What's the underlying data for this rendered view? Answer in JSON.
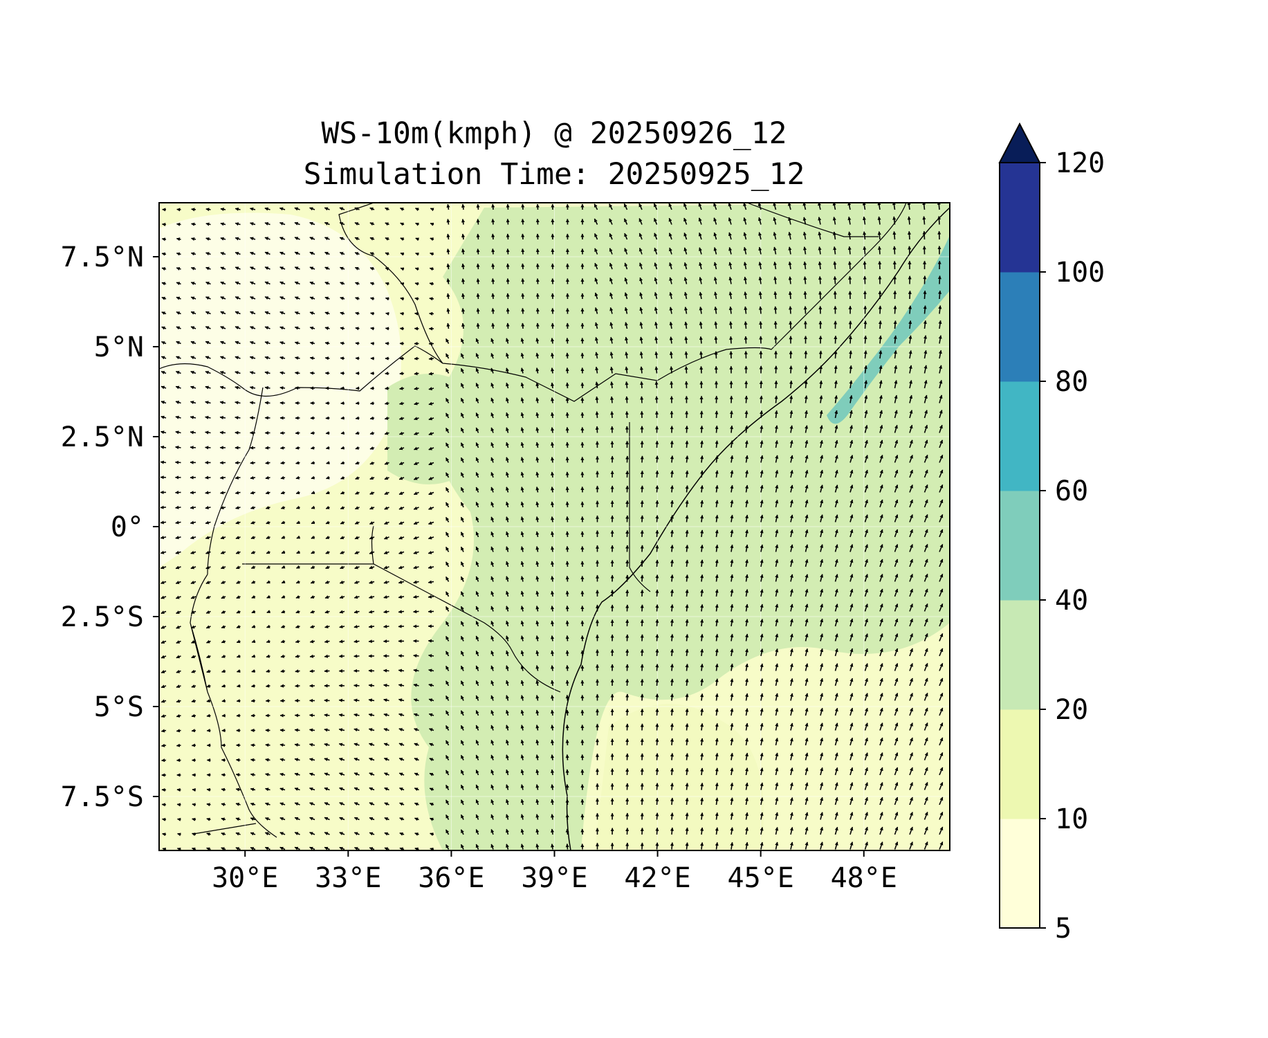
{
  "title_line1": "WS-10m(kmph) @ 20250926_12",
  "title_line2": "Simulation Time: 20250925_12",
  "map": {
    "lon_range": [
      27.5,
      50.5
    ],
    "lat_range": [
      -9.0,
      9.0
    ],
    "lon_ticks": [
      {
        "value": 30,
        "label": "30°E"
      },
      {
        "value": 33,
        "label": "33°E"
      },
      {
        "value": 36,
        "label": "36°E"
      },
      {
        "value": 39,
        "label": "39°E"
      },
      {
        "value": 42,
        "label": "42°E"
      },
      {
        "value": 45,
        "label": "45°E"
      },
      {
        "value": 48,
        "label": "48°E"
      }
    ],
    "lat_ticks": [
      {
        "value": 7.5,
        "label": "7.5°N"
      },
      {
        "value": 5,
        "label": "5°N"
      },
      {
        "value": 2.5,
        "label": "2.5°N"
      },
      {
        "value": 0,
        "label": "0°"
      },
      {
        "value": -2.5,
        "label": "2.5°S"
      },
      {
        "value": -5,
        "label": "5°S"
      },
      {
        "value": -7.5,
        "label": "7.5°S"
      }
    ],
    "background_colors": {
      "land_light": "#f7fcc8",
      "sea_green": "#d3edb3",
      "band_teal": "#7fcdbb"
    },
    "vector_field": "wind arrows"
  },
  "colorbar": {
    "levels": [
      {
        "value": 5,
        "label": "5",
        "color": "#ffffd9"
      },
      {
        "value": 10,
        "label": "10",
        "color": "#edf8b1"
      },
      {
        "value": 20,
        "label": "20",
        "color": "#c7e9b4"
      },
      {
        "value": 40,
        "label": "40",
        "color": "#7fcdbb"
      },
      {
        "value": 60,
        "label": "60",
        "color": "#41b6c4"
      },
      {
        "value": 80,
        "label": "80",
        "color": "#2c7fb8"
      },
      {
        "value": 100,
        "label": "100",
        "color": "#253494"
      },
      {
        "value": 120,
        "label": "120",
        "color": "#081d58"
      }
    ],
    "extend": "max"
  },
  "chart_data": {
    "type": "heatmap",
    "title": "WS-10m(kmph) @ 20250926_12\nSimulation Time: 20250925_12",
    "x_ticks": [
      "30°E",
      "33°E",
      "36°E",
      "39°E",
      "42°E",
      "45°E",
      "48°E"
    ],
    "y_ticks": [
      "7.5°N",
      "5°N",
      "2.5°N",
      "0°",
      "2.5°S",
      "5°S",
      "7.5°S"
    ],
    "xlim": [
      27.5,
      50.5
    ],
    "ylim": [
      -9.0,
      9.0
    ],
    "colorbar_levels": [
      5,
      10,
      20,
      40,
      60,
      80,
      100,
      120
    ],
    "dominant_values": "10–20 kmph over land, 20–40 kmph over Indian Ocean, 40–60 kmph band off Somali coast"
  }
}
